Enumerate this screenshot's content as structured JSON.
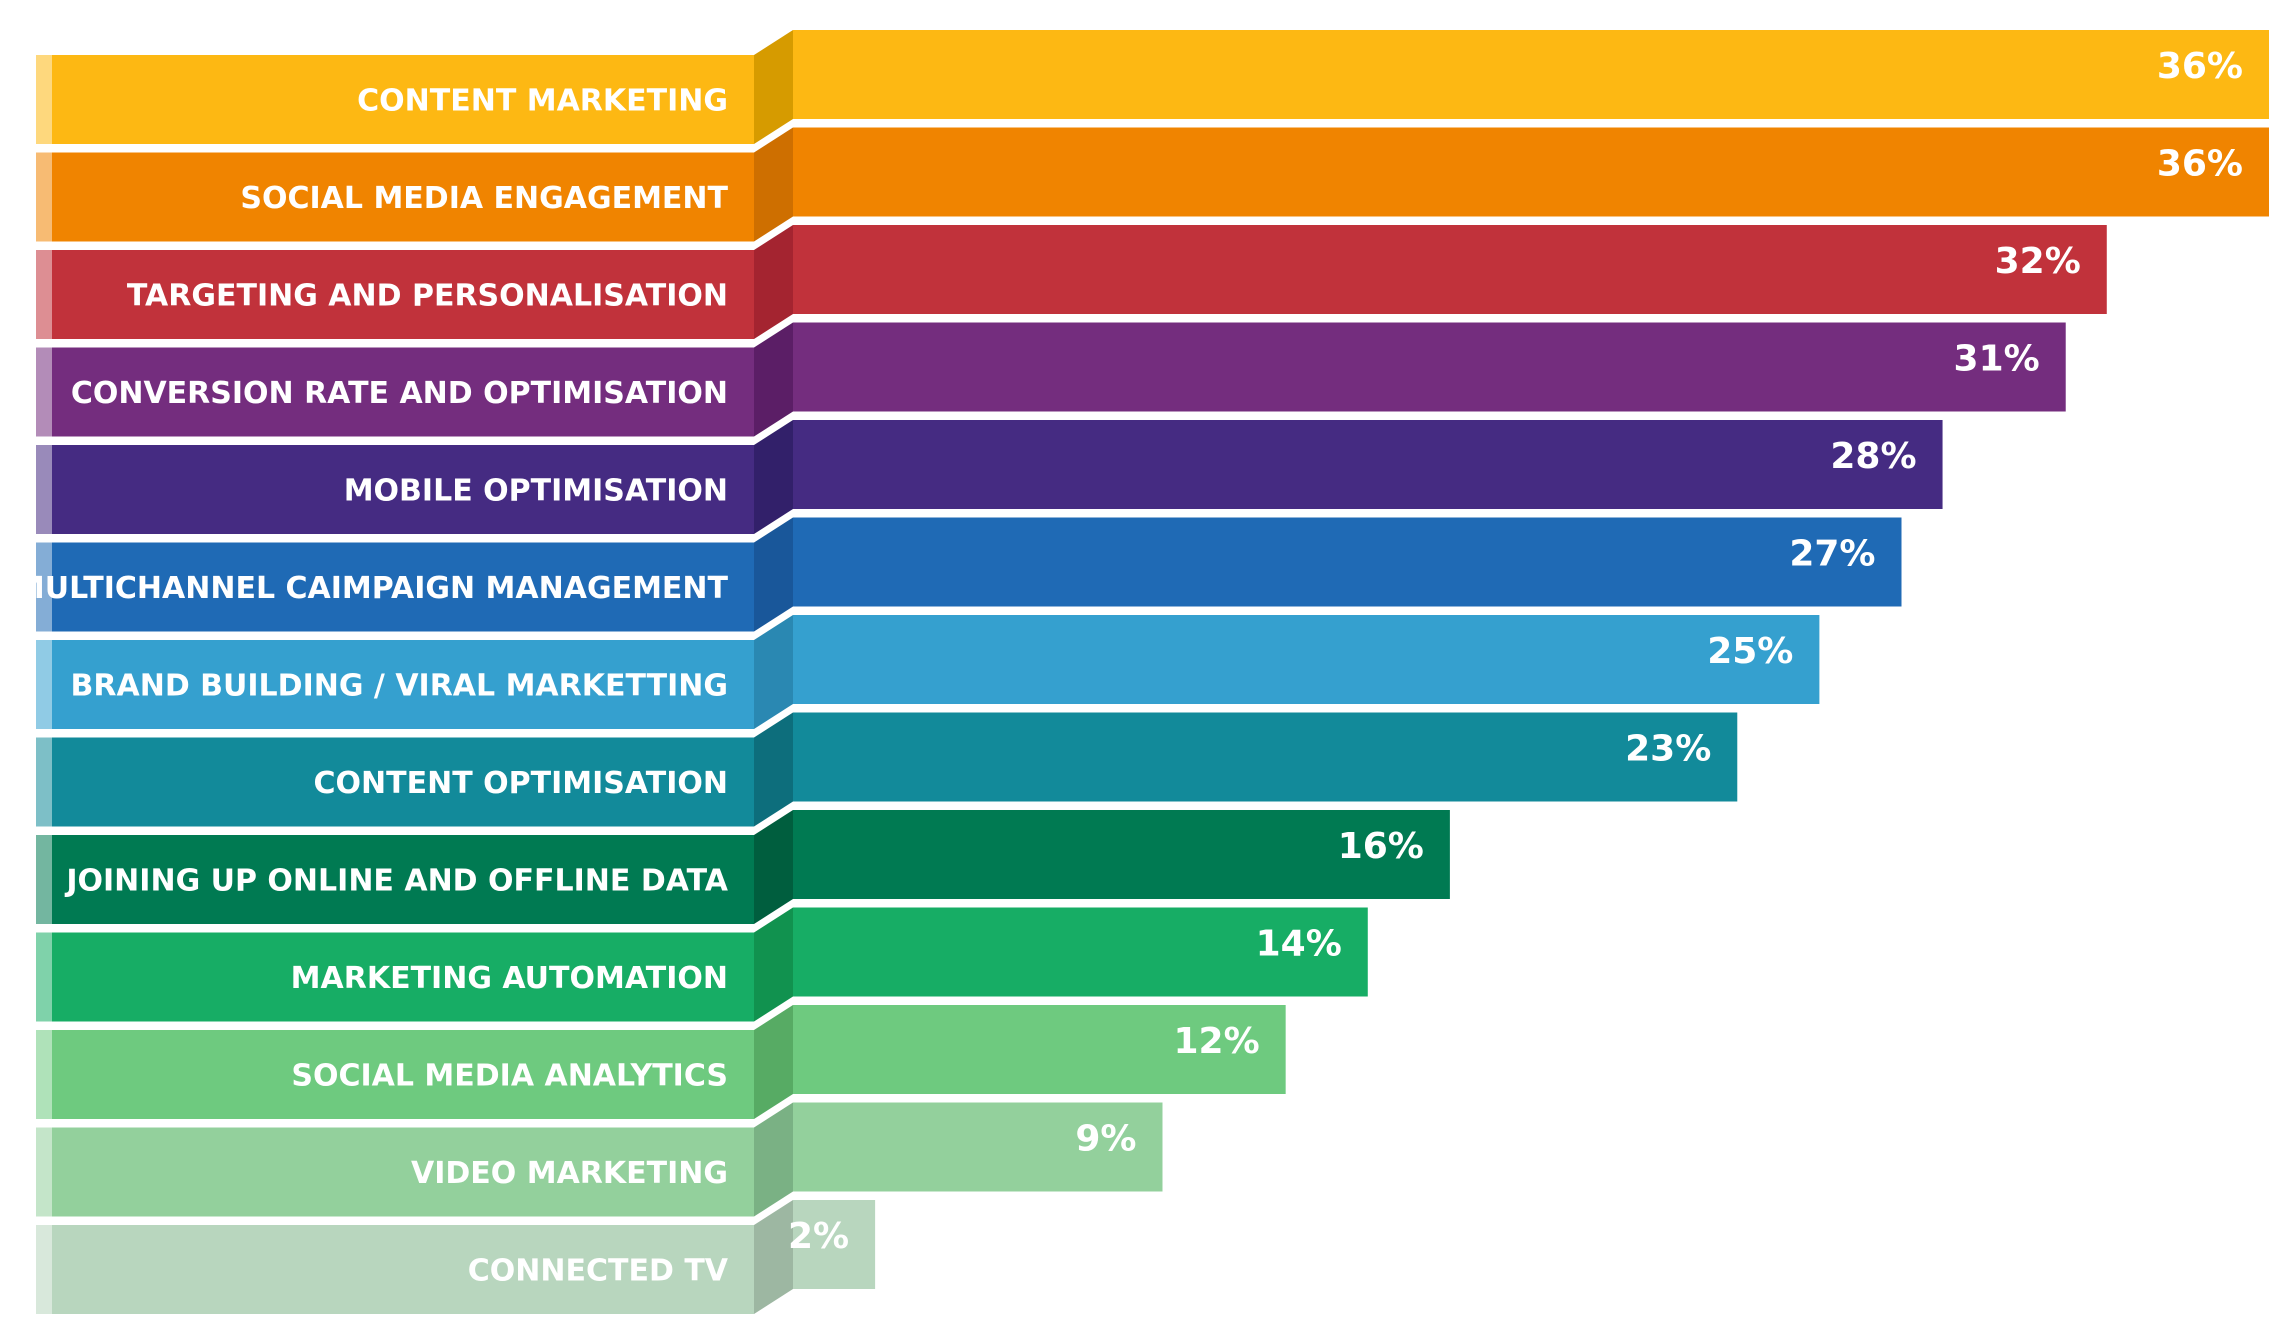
{
  "chart_data": {
    "type": "bar",
    "orientation": "horizontal",
    "categories": [
      "CONTENT MARKETING",
      "SOCIAL MEDIA ENGAGEMENT",
      "TARGETING AND PERSONALISATION",
      "CONVERSION RATE AND OPTIMISATION",
      "MOBILE  OPTIMISATION",
      "MULTICHANNEL CAIMPAIGN MANAGEMENT",
      "BRAND BUILDING / VIRAL MARKETTING",
      "CONTENT OPTIMISATION",
      "JOINING UP ONLINE AND OFFLINE DATA",
      "MARKETING AUTOMATION",
      "SOCIAL MEDIA ANALYTICS",
      "VIDEO MARKETING",
      "CONNECTED TV"
    ],
    "values": [
      36,
      36,
      32,
      31,
      28,
      27,
      25,
      23,
      16,
      14,
      12,
      9,
      2
    ],
    "value_labels": [
      "36%",
      "36%",
      "32%",
      "31%",
      "28%",
      "27%",
      "25%",
      "23%",
      "16%",
      "14%",
      "12%",
      "9%",
      "2%"
    ],
    "unit": "%",
    "colors": [
      "#FDB813",
      "#F08400",
      "#C1323B",
      "#742D7E",
      "#452B82",
      "#1F6AB5",
      "#35A0CF",
      "#128A9A",
      "#007A52",
      "#17AD65",
      "#6ECA7F",
      "#93D09C",
      "#B8D6BE"
    ],
    "fold_colors": [
      "#D69B00",
      "#CE6F00",
      "#A42430",
      "#5B1E66",
      "#32206A",
      "#19579A",
      "#2A88B2",
      "#0D6E7C",
      "#005E3E",
      "#11924F",
      "#57AB64",
      "#7AB184",
      "#9DB7A2"
    ],
    "title": "",
    "xlabel": "",
    "ylabel": "",
    "grid": false,
    "legend": "none"
  }
}
